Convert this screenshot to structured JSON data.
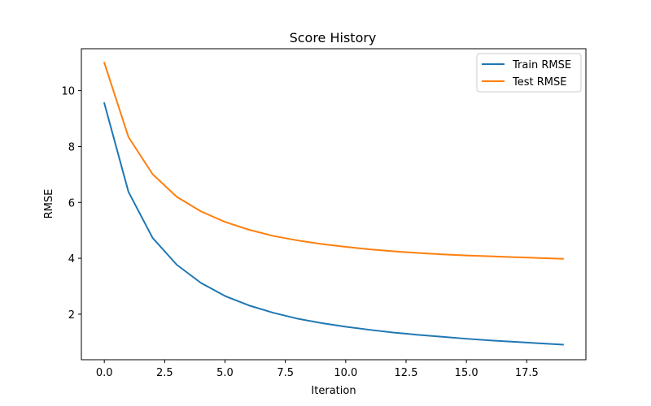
{
  "chart_data": {
    "type": "line",
    "title": "Score History",
    "xlabel": "Iteration",
    "ylabel": "RMSE",
    "xlim": [
      -0.95,
      19.95
    ],
    "ylim": [
      0.37,
      11.5
    ],
    "xticks": [
      0.0,
      2.5,
      5.0,
      7.5,
      10.0,
      12.5,
      15.0,
      17.5
    ],
    "xtick_labels": [
      "0.0",
      "2.5",
      "5.0",
      "7.5",
      "10.0",
      "12.5",
      "15.0",
      "17.5"
    ],
    "yticks": [
      2,
      4,
      6,
      8,
      10
    ],
    "ytick_labels": [
      "2",
      "4",
      "6",
      "8",
      "10"
    ],
    "grid": false,
    "legend": "top-right",
    "x": [
      0,
      1,
      2,
      3,
      4,
      5,
      6,
      7,
      8,
      9,
      10,
      11,
      12,
      13,
      14,
      15,
      16,
      17,
      18,
      19
    ],
    "series": [
      {
        "name": "Train RMSE",
        "color": "#1f77b4",
        "values": [
          9.55,
          6.38,
          4.73,
          3.77,
          3.12,
          2.65,
          2.31,
          2.05,
          1.84,
          1.68,
          1.55,
          1.44,
          1.34,
          1.26,
          1.19,
          1.12,
          1.06,
          1.01,
          0.96,
          0.91
        ]
      },
      {
        "name": "Test RMSE",
        "color": "#ff7f0e",
        "values": [
          11.0,
          8.34,
          7.01,
          6.2,
          5.68,
          5.3,
          5.02,
          4.8,
          4.64,
          4.51,
          4.41,
          4.32,
          4.25,
          4.19,
          4.14,
          4.1,
          4.07,
          4.04,
          4.01,
          3.98
        ]
      }
    ]
  }
}
